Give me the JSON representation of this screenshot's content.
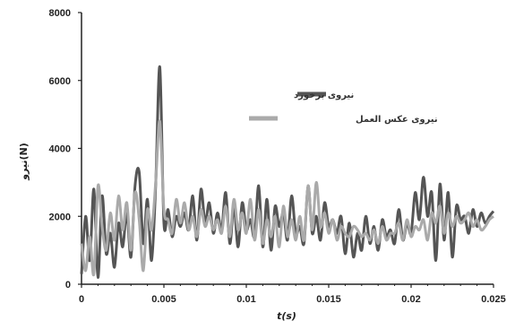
{
  "chart_data": {
    "type": "line",
    "title": "",
    "xlabel": "t(s)",
    "ylabel": "نیرو(N)",
    "xlim": [
      0,
      0.025
    ],
    "ylim": [
      0,
      8000
    ],
    "x_ticks": [
      "0",
      "0.005",
      "0.01",
      "0.015",
      "0.02",
      "0.025"
    ],
    "y_ticks": [
      "0",
      "2000",
      "4000",
      "6000",
      "8000"
    ],
    "grid": false,
    "legend_position": "center-right",
    "series": [
      {
        "name": "نیروی برخورد",
        "color": "#555555",
        "x": [
          0,
          0.00025,
          0.0005,
          0.00075,
          0.001,
          0.00125,
          0.0015,
          0.00175,
          0.002,
          0.00225,
          0.0025,
          0.00275,
          0.003,
          0.00325,
          0.0035,
          0.00375,
          0.004,
          0.00425,
          0.0045,
          0.00475,
          0.005,
          0.00525,
          0.0055,
          0.00575,
          0.006,
          0.00625,
          0.0065,
          0.00675,
          0.007,
          0.00725,
          0.0075,
          0.00775,
          0.008,
          0.00825,
          0.0085,
          0.00875,
          0.009,
          0.00925,
          0.0095,
          0.00975,
          0.01,
          0.01025,
          0.0105,
          0.01075,
          0.011,
          0.01125,
          0.0115,
          0.01175,
          0.012,
          0.01225,
          0.0125,
          0.01275,
          0.013,
          0.01325,
          0.0135,
          0.01375,
          0.014,
          0.01425,
          0.0145,
          0.01475,
          0.015,
          0.01525,
          0.0155,
          0.01575,
          0.016,
          0.01625,
          0.0165,
          0.01675,
          0.017,
          0.01725,
          0.0175,
          0.01775,
          0.018,
          0.01825,
          0.0185,
          0.01875,
          0.019,
          0.01925,
          0.0195,
          0.01975,
          0.02,
          0.02025,
          0.0205,
          0.02075,
          0.021,
          0.02125,
          0.0215,
          0.02175,
          0.022,
          0.02225,
          0.0225,
          0.02275,
          0.023,
          0.02325,
          0.0235,
          0.02375,
          0.024,
          0.02425,
          0.0245,
          0.02475,
          0.025
        ],
        "values": [
          300,
          2000,
          700,
          2800,
          200,
          2600,
          900,
          1500,
          500,
          1800,
          1100,
          2100,
          800,
          2900,
          3300,
          1200,
          2500,
          700,
          2900,
          6400,
          1800,
          2200,
          1400,
          2000,
          1700,
          2100,
          1600,
          2600,
          1300,
          2800,
          1800,
          2400,
          1500,
          2100,
          1600,
          2700,
          1200,
          2300,
          1100,
          2400,
          1600,
          1900,
          1400,
          2900,
          1100,
          2500,
          1000,
          2300,
          1700,
          2100,
          1300,
          2600,
          1500,
          1700,
          1200,
          2900,
          1500,
          2000,
          1300,
          2400,
          1700,
          1900,
          1500,
          2000,
          900,
          1800,
          800,
          1500,
          1000,
          2000,
          1200,
          1700,
          1000,
          1900,
          1400,
          1600,
          1200,
          2200,
          1300,
          1800,
          1500,
          2700,
          1900,
          3150,
          2000,
          2700,
          700,
          2950,
          1300,
          2700,
          800,
          2300,
          1900,
          2000,
          1500,
          2200,
          1700,
          2100,
          1800,
          2000,
          2150
        ]
      },
      {
        "name": "نیروی عکس العمل",
        "color": "#aaaaaa",
        "x": [
          0,
          0.00025,
          0.0005,
          0.00075,
          0.001,
          0.00125,
          0.0015,
          0.00175,
          0.002,
          0.00225,
          0.0025,
          0.00275,
          0.003,
          0.00325,
          0.0035,
          0.00375,
          0.004,
          0.00425,
          0.0045,
          0.00475,
          0.005,
          0.00525,
          0.0055,
          0.00575,
          0.006,
          0.00625,
          0.0065,
          0.00675,
          0.007,
          0.00725,
          0.0075,
          0.00775,
          0.008,
          0.00825,
          0.0085,
          0.00875,
          0.009,
          0.00925,
          0.0095,
          0.00975,
          0.01,
          0.01025,
          0.0105,
          0.01075,
          0.011,
          0.01125,
          0.0115,
          0.01175,
          0.012,
          0.01225,
          0.0125,
          0.01275,
          0.013,
          0.01325,
          0.0135,
          0.01375,
          0.014,
          0.01425,
          0.0145,
          0.01475,
          0.015,
          0.01525,
          0.0155,
          0.01575,
          0.016,
          0.01625,
          0.0165,
          0.01675,
          0.017,
          0.01725,
          0.0175,
          0.01775,
          0.018,
          0.01825,
          0.0185,
          0.01875,
          0.019,
          0.01925,
          0.0195,
          0.01975,
          0.02,
          0.02025,
          0.0205,
          0.02075,
          0.021,
          0.02125,
          0.0215,
          0.02175,
          0.022,
          0.02225,
          0.0225,
          0.02275,
          0.023,
          0.02325,
          0.0235,
          0.02375,
          0.024,
          0.02425,
          0.0245,
          0.02475,
          0.025
        ],
        "values": [
          1200,
          400,
          1400,
          300,
          2900,
          1700,
          1000,
          2100,
          1300,
          2600,
          1600,
          2400,
          1000,
          2700,
          1900,
          400,
          2200,
          1600,
          3000,
          4800,
          2200,
          1900,
          1500,
          2500,
          1800,
          2400,
          1600,
          2000,
          1400,
          2200,
          1700,
          2000,
          1600,
          1900,
          1500,
          2300,
          1400,
          2500,
          1600,
          2100,
          1500,
          2500,
          1300,
          2200,
          1200,
          1900,
          1400,
          2000,
          1100,
          2300,
          1400,
          1900,
          1300,
          2000,
          1300,
          2900,
          1600,
          3000,
          1700,
          2100,
          1500,
          1900,
          1300,
          1700,
          1500,
          1400,
          1700,
          1600,
          1400,
          1500,
          1300,
          1600,
          1200,
          1700,
          1300,
          1500,
          1500,
          1800,
          1300,
          1900,
          1400,
          1700,
          1600,
          1900,
          1300,
          2100,
          1800,
          2300,
          1500,
          2100,
          1700,
          2000,
          1800,
          1900,
          2100,
          1700,
          1900,
          1600,
          1700,
          1900,
          2000
        ]
      }
    ]
  }
}
